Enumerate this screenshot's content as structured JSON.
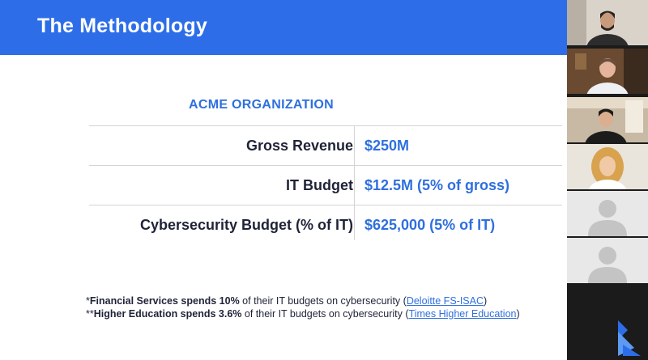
{
  "slide": {
    "title": "The Methodology",
    "org_title": "ACME ORGANIZATION",
    "rows": [
      {
        "label": "Gross Revenue",
        "value": "$250M"
      },
      {
        "label": "IT Budget",
        "value": "$12.5M (5% of gross)"
      },
      {
        "label": "Cybersecurity Budget (% of IT)",
        "value": "$625,000 (5% of IT)"
      }
    ],
    "footnotes": [
      {
        "prefix": "*",
        "bold": "Financial Services spends 10%",
        "text": " of their IT budgets on cybersecurity (",
        "link": "Deloitte FS-ISAC",
        "suffix": ")"
      },
      {
        "prefix": "**",
        "bold": "Higher Education spends 3.6%",
        "text": " of their IT budgets on cybersecurity (",
        "link": "Times Higher Education",
        "suffix": ")"
      }
    ]
  },
  "participants": [
    {
      "type": "video",
      "skin": "#c79a7c",
      "hair": "#2a2320",
      "shirt": "#2d2d2d",
      "bg": "#d9d3c9"
    },
    {
      "type": "video",
      "skin": "#e4b49c",
      "hair": "#6b5040",
      "shirt": "#eef0f4",
      "bg": "#6a4a30"
    },
    {
      "type": "video",
      "skin": "#dcae90",
      "hair": "#1f1b19",
      "shirt": "#1c1c1c",
      "bg": "#c8b9a4"
    },
    {
      "type": "video",
      "skin": "#f0c9a6",
      "hair": "#d8a24e",
      "shirt": "#ffffff",
      "bg": "#e9e4dc"
    },
    {
      "type": "avatar"
    },
    {
      "type": "avatar"
    }
  ],
  "colors": {
    "header": "#2d6ee8",
    "accent": "#2f6fde",
    "text": "#1f2337"
  }
}
